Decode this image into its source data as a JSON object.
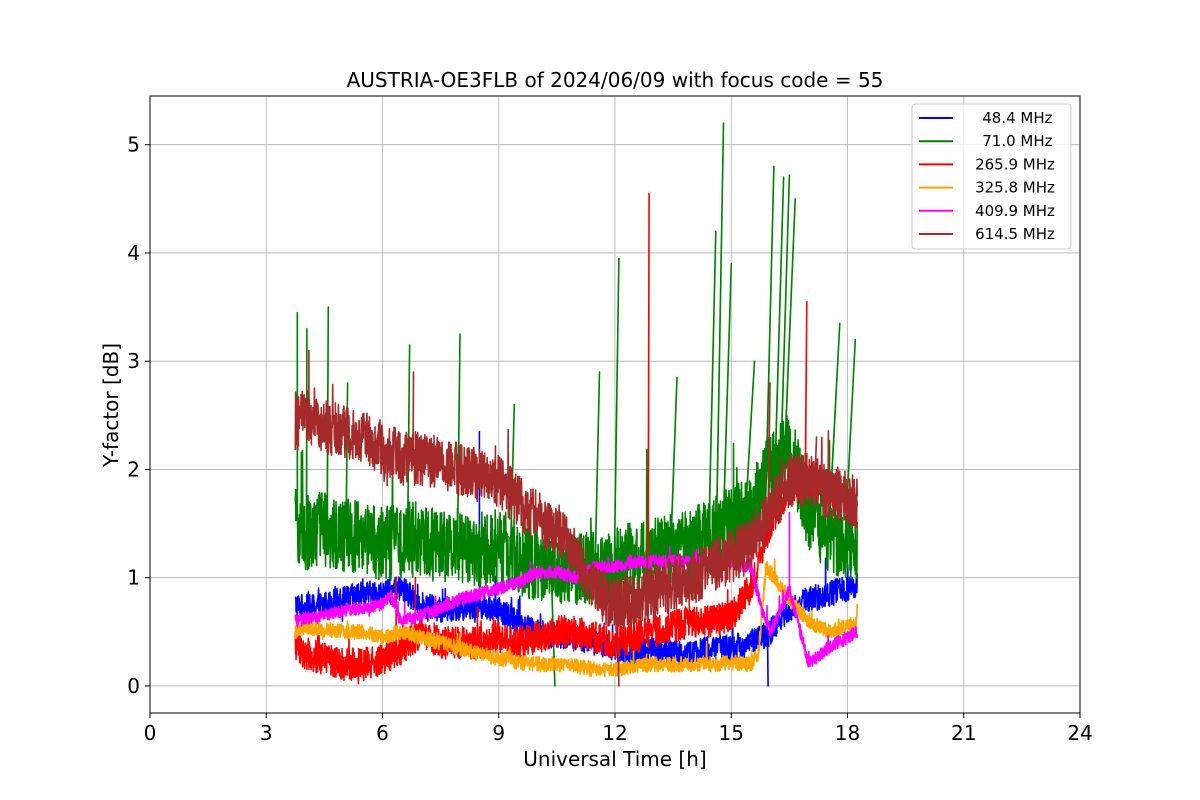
{
  "chart_data": {
    "type": "line",
    "title": "AUSTRIA-OE3FLB of 2024/06/09 with focus code = 55",
    "xlabel": "Universal Time [h]",
    "ylabel": "Y-factor [dB]",
    "xlim": [
      0,
      24
    ],
    "ylim": [
      -0.25,
      5.45
    ],
    "xticks": [
      0,
      3,
      6,
      9,
      12,
      15,
      18,
      21,
      24
    ],
    "xtick_labels": [
      "0",
      "3",
      "6",
      "9",
      "12",
      "15",
      "18",
      "21",
      "24"
    ],
    "yticks": [
      0,
      1,
      2,
      3,
      4,
      5
    ],
    "ytick_labels": [
      "0",
      "1",
      "2",
      "3",
      "4",
      "5"
    ],
    "grid": true,
    "legend_position": "top-right",
    "series": [
      {
        "name": " 48.4 MHz",
        "color": "#0000ff",
        "x": [
          3.75,
          4,
          4.5,
          5,
          5.5,
          6,
          6.5,
          7,
          7.5,
          8,
          8.5,
          9,
          9.5,
          10,
          10.5,
          11,
          11.5,
          12,
          12.5,
          13,
          13.5,
          14,
          14.5,
          15,
          15.5,
          16,
          16.5,
          17,
          17.5,
          18,
          18.25
        ],
        "values": [
          0.75,
          0.72,
          0.75,
          0.8,
          0.85,
          0.85,
          0.9,
          0.75,
          0.7,
          0.72,
          0.75,
          0.7,
          0.6,
          0.5,
          0.45,
          0.45,
          0.4,
          0.35,
          0.3,
          0.35,
          0.3,
          0.3,
          0.35,
          0.35,
          0.4,
          0.5,
          0.7,
          0.8,
          0.85,
          0.9,
          0.95
        ],
        "noise": 0.12,
        "spikes": [
          [
            8.5,
            2.35
          ],
          [
            15.95,
            0.0
          ]
        ]
      },
      {
        "name": " 71.0 MHz",
        "color": "#008000",
        "x": [
          3.75,
          4,
          4.5,
          5,
          5.5,
          6,
          6.5,
          7,
          7.5,
          8,
          8.5,
          9,
          9.5,
          10,
          10.5,
          11,
          11.5,
          12,
          12.5,
          13,
          13.5,
          14,
          14.5,
          15,
          15.5,
          16,
          16.5,
          17,
          17.5,
          18,
          18.25
        ],
        "values": [
          1.5,
          1.4,
          1.45,
          1.4,
          1.35,
          1.3,
          1.35,
          1.35,
          1.3,
          1.3,
          1.25,
          1.3,
          1.2,
          1.1,
          1.1,
          1.1,
          1.1,
          1.1,
          1.2,
          1.2,
          1.25,
          1.3,
          1.4,
          1.5,
          1.6,
          2.0,
          2.2,
          1.6,
          1.4,
          1.3,
          1.3
        ],
        "noise": 0.35,
        "spikes": [
          [
            3.8,
            3.45
          ],
          [
            4.05,
            3.3
          ],
          [
            4.6,
            3.5
          ],
          [
            5.1,
            2.8
          ],
          [
            6.7,
            3.15
          ],
          [
            8.0,
            3.25
          ],
          [
            9.4,
            2.6
          ],
          [
            10.45,
            0.0
          ],
          [
            11.6,
            2.9
          ],
          [
            12.1,
            3.95
          ],
          [
            13.6,
            2.85
          ],
          [
            14.6,
            4.2
          ],
          [
            14.8,
            5.2
          ],
          [
            15.0,
            3.9
          ],
          [
            15.6,
            3.0
          ],
          [
            16.1,
            4.8
          ],
          [
            16.35,
            4.7
          ],
          [
            16.5,
            4.72
          ],
          [
            16.65,
            4.5
          ],
          [
            17.8,
            3.35
          ],
          [
            18.2,
            3.2
          ]
        ]
      },
      {
        "name": "265.9 MHz",
        "color": "#ff0000",
        "x": [
          3.75,
          4,
          4.5,
          5,
          5.5,
          6,
          6.5,
          7,
          7.5,
          8,
          8.5,
          9,
          9.5,
          10,
          10.5,
          11,
          11.5,
          12,
          12.5,
          13,
          13.5,
          14,
          14.5,
          15,
          15.5,
          16,
          16.5,
          17,
          17.5,
          18,
          18.25
        ],
        "values": [
          0.4,
          0.3,
          0.25,
          0.2,
          0.2,
          0.25,
          0.35,
          0.5,
          0.4,
          0.4,
          0.4,
          0.45,
          0.4,
          0.45,
          0.5,
          0.5,
          0.45,
          0.4,
          0.45,
          0.5,
          0.55,
          0.6,
          0.6,
          0.65,
          0.9,
          1.5,
          1.8,
          1.9,
          1.8,
          1.7,
          1.6
        ],
        "noise": 0.15,
        "spikes": [
          [
            6.35,
            1.0
          ],
          [
            6.85,
            1.0
          ],
          [
            12.88,
            4.55
          ],
          [
            16.95,
            3.55
          ],
          [
            15.55,
            1.3
          ]
        ]
      },
      {
        "name": "325.8 MHz",
        "color": "#ffa500",
        "x": [
          3.75,
          4,
          4.5,
          5,
          5.5,
          6,
          6.5,
          7,
          7.5,
          8,
          8.5,
          9,
          9.5,
          10,
          10.5,
          11,
          11.5,
          12,
          12.5,
          13,
          13.5,
          14,
          14.5,
          15,
          15.5,
          15.7,
          15.9,
          16.5,
          17,
          17.5,
          18,
          18.25
        ],
        "values": [
          0.5,
          0.55,
          0.52,
          0.5,
          0.5,
          0.45,
          0.5,
          0.45,
          0.4,
          0.35,
          0.3,
          0.25,
          0.22,
          0.2,
          0.2,
          0.18,
          0.15,
          0.15,
          0.18,
          0.2,
          0.2,
          0.2,
          0.2,
          0.22,
          0.2,
          0.3,
          1.1,
          0.8,
          0.6,
          0.5,
          0.55,
          0.6
        ],
        "noise": 0.07,
        "spikes": []
      },
      {
        "name": "409.9 MHz",
        "color": "#ff00ff",
        "x": [
          3.75,
          4,
          4.5,
          5,
          5.5,
          6,
          6.2,
          6.4,
          6.5,
          7,
          7.5,
          8,
          8.5,
          9,
          9.5,
          10,
          10.5,
          11,
          11.5,
          12,
          12.5,
          13,
          13.5,
          14,
          14.5,
          15,
          15.5,
          15.8,
          16,
          16.3,
          16.5,
          17,
          17.5,
          18,
          18.25
        ],
        "values": [
          0.6,
          0.62,
          0.65,
          0.7,
          0.72,
          0.75,
          0.85,
          0.65,
          0.6,
          0.65,
          0.72,
          0.8,
          0.85,
          0.9,
          0.95,
          1.05,
          1.05,
          1.0,
          1.1,
          1.1,
          1.15,
          1.15,
          1.15,
          1.15,
          1.15,
          1.15,
          1.1,
          0.7,
          0.5,
          0.7,
          0.9,
          0.2,
          0.35,
          0.45,
          0.5
        ],
        "noise": 0.06,
        "spikes": [
          [
            16.5,
            1.6
          ]
        ]
      },
      {
        "name": "614.5 MHz",
        "color": "#a52a2a",
        "x": [
          3.75,
          4,
          4.5,
          5,
          5.5,
          6,
          6.5,
          7,
          7.5,
          8,
          8.5,
          9,
          9.5,
          10,
          10.5,
          11,
          11.5,
          12,
          12.5,
          13,
          13.5,
          14,
          14.5,
          15,
          15.5,
          16,
          16.5,
          17,
          17.5,
          18,
          18.25
        ],
        "values": [
          2.4,
          2.5,
          2.4,
          2.35,
          2.3,
          2.2,
          2.1,
          2.1,
          2.05,
          2.0,
          1.95,
          1.9,
          1.7,
          1.55,
          1.45,
          1.2,
          0.9,
          0.75,
          0.8,
          0.85,
          0.95,
          1.0,
          1.1,
          1.2,
          1.3,
          1.6,
          1.9,
          1.9,
          1.8,
          1.75,
          1.7
        ],
        "noise": 0.25,
        "spikes": [
          [
            4.1,
            3.1
          ],
          [
            6.8,
            2.9
          ],
          [
            12.1,
            0.0
          ],
          [
            16.0,
            2.8
          ],
          [
            17.2,
            2.3
          ]
        ]
      }
    ]
  }
}
